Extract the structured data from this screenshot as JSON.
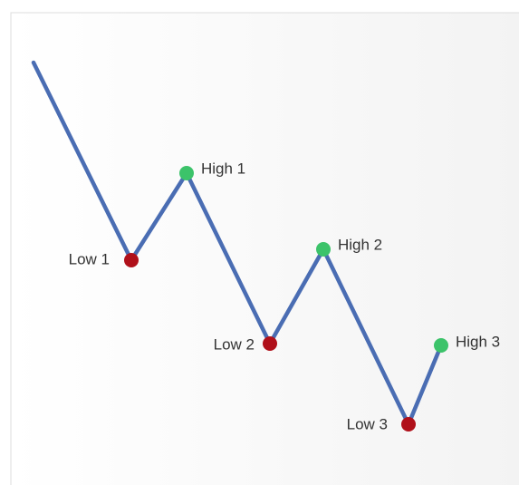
{
  "lows": [
    "Low 1",
    "Low 2",
    "Low 3"
  ],
  "highs": [
    "High 1",
    "High 2",
    "High 3"
  ]
}
